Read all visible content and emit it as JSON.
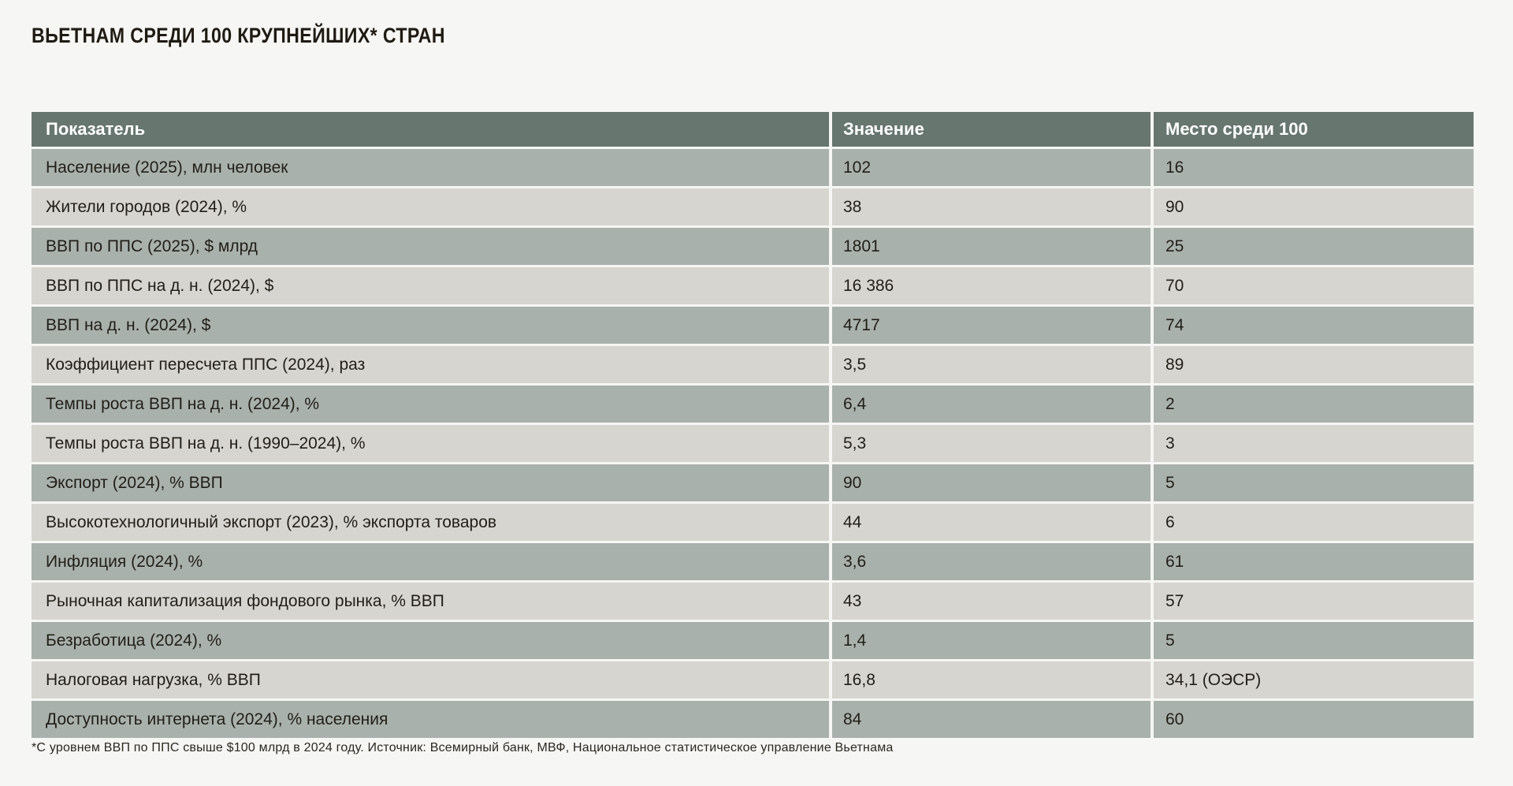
{
  "page": {
    "title": "ВЬЕТНАМ СРЕДИ 100 КРУПНЕЙШИХ* СТРАН",
    "footnote": "*С уровнем ВВП по ППС свыше $100 млрд в 2024 году. Источник: Всемирный банк, МВФ, Национальное статистическое управление Вьетнама"
  },
  "colors": {
    "page_bg": "#f6f6f4",
    "header_bg": "#67766f",
    "row_dark": "#a9b1ad",
    "row_light": "#d6d5cf",
    "cell_text": "#211e17",
    "header_text": "#ffffff",
    "title_text": "#1f1b13",
    "footnote_text": "#2b2720"
  },
  "chart_data": {
    "type": "table",
    "title": "ВЬЕТНАМ СРЕДИ 100 КРУПНЕЙШИХ* СТРАН",
    "columns": [
      "Показатель",
      "Значение",
      "Место среди 100"
    ],
    "rows": [
      [
        "Население (2025), млн человек",
        "102",
        "16"
      ],
      [
        "Жители городов (2024), %",
        "38",
        "90"
      ],
      [
        "ВВП по ППС (2025), $ млрд",
        "1801",
        "25"
      ],
      [
        "ВВП по ППС на д. н. (2024), $",
        "16 386",
        "70"
      ],
      [
        "ВВП на д. н. (2024), $",
        "4717",
        "74"
      ],
      [
        "Коэффициент пересчета ППС (2024), раз",
        "3,5",
        "89"
      ],
      [
        "Темпы роста ВВП на д. н. (2024), %",
        "6,4",
        "2"
      ],
      [
        "Темпы роста ВВП на д. н. (1990–2024), %",
        "5,3",
        "3"
      ],
      [
        "Экспорт (2024), % ВВП",
        "90",
        "5"
      ],
      [
        "Высокотехнологичный экспорт (2023), % экспорта товаров",
        "44",
        "6"
      ],
      [
        "Инфляция (2024), %",
        "3,6",
        "61"
      ],
      [
        "Рыночная капитализация фондового рынка, % ВВП",
        "43",
        "57"
      ],
      [
        "Безработица (2024), %",
        "1,4",
        "5"
      ],
      [
        "Налоговая нагрузка, % ВВП",
        "16,8",
        "34,1 (ОЭСР)"
      ],
      [
        "Доступность интернета (2024), % населения",
        "84",
        "60"
      ]
    ],
    "footnote": "*С уровнем ВВП по ППС свыше $100 млрд в 2024 году. Источник: Всемирный банк, МВФ, Национальное статистическое управление Вьетнама",
    "legend": false,
    "grid": false
  }
}
